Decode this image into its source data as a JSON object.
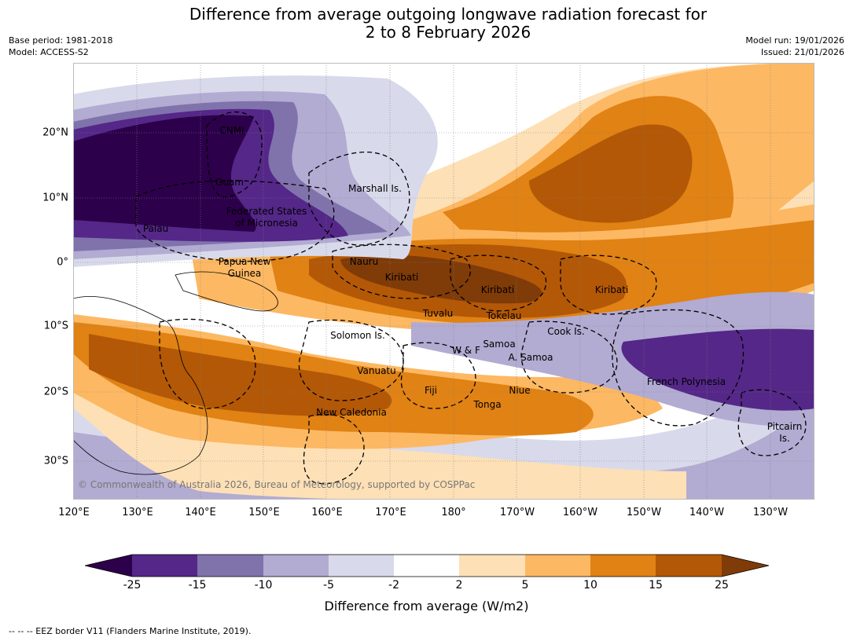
{
  "title": {
    "line1": "Difference from average outgoing longwave radiation forecast for",
    "line2": "2 to 8 February 2026"
  },
  "meta": {
    "base_period": "Base period: 1981-2018",
    "model": "Model: ACCESS-S2",
    "model_run": "Model run: 19/01/2026",
    "issued": "Issued: 21/01/2026"
  },
  "map": {
    "credit": "© Commonwealth of Australia 2026, Bureau of Meteorology, supported by COSPPac",
    "lat_labels": [
      "20°N",
      "10°N",
      "0°",
      "10°S",
      "20°S",
      "30°S"
    ],
    "lon_labels": [
      "120°E",
      "130°E",
      "140°E",
      "150°E",
      "160°E",
      "170°E",
      "180°",
      "170°W",
      "160°W",
      "150°W",
      "140°W",
      "130°W"
    ],
    "region_labels": [
      "CNMI",
      "Guam",
      "Federated States",
      "of Micronesia",
      "Palau",
      "Marshall Is.",
      "Papua New",
      "Guinea",
      "Nauru",
      "Kiribati",
      "Kiribati",
      "Kiribati",
      "Tuvalu",
      "Tokelau",
      "Solomon Is.",
      "Samoa",
      "W & F",
      "A. Samoa",
      "Cook Is.",
      "Vanuatu",
      "Fiji",
      "Niue",
      "Tonga",
      "New Caledonia",
      "French Polynesia",
      "Pitcairn",
      "Is."
    ]
  },
  "colorbar": {
    "colors": [
      "#2d004b",
      "#542788",
      "#8073ac",
      "#b2abd2",
      "#d8daeb",
      "#ffffff",
      "#fee0b6",
      "#fdb863",
      "#e08214",
      "#b35806",
      "#7f3b08"
    ],
    "tick_labels": [
      "-25",
      "-15",
      "-10",
      "-5",
      "-2",
      "2",
      "5",
      "10",
      "15",
      "25"
    ],
    "label": "Difference from average (W/m2)"
  },
  "footnote": "--  --  -- EEZ border V11 (Flanders Marine Institute, 2019)."
}
